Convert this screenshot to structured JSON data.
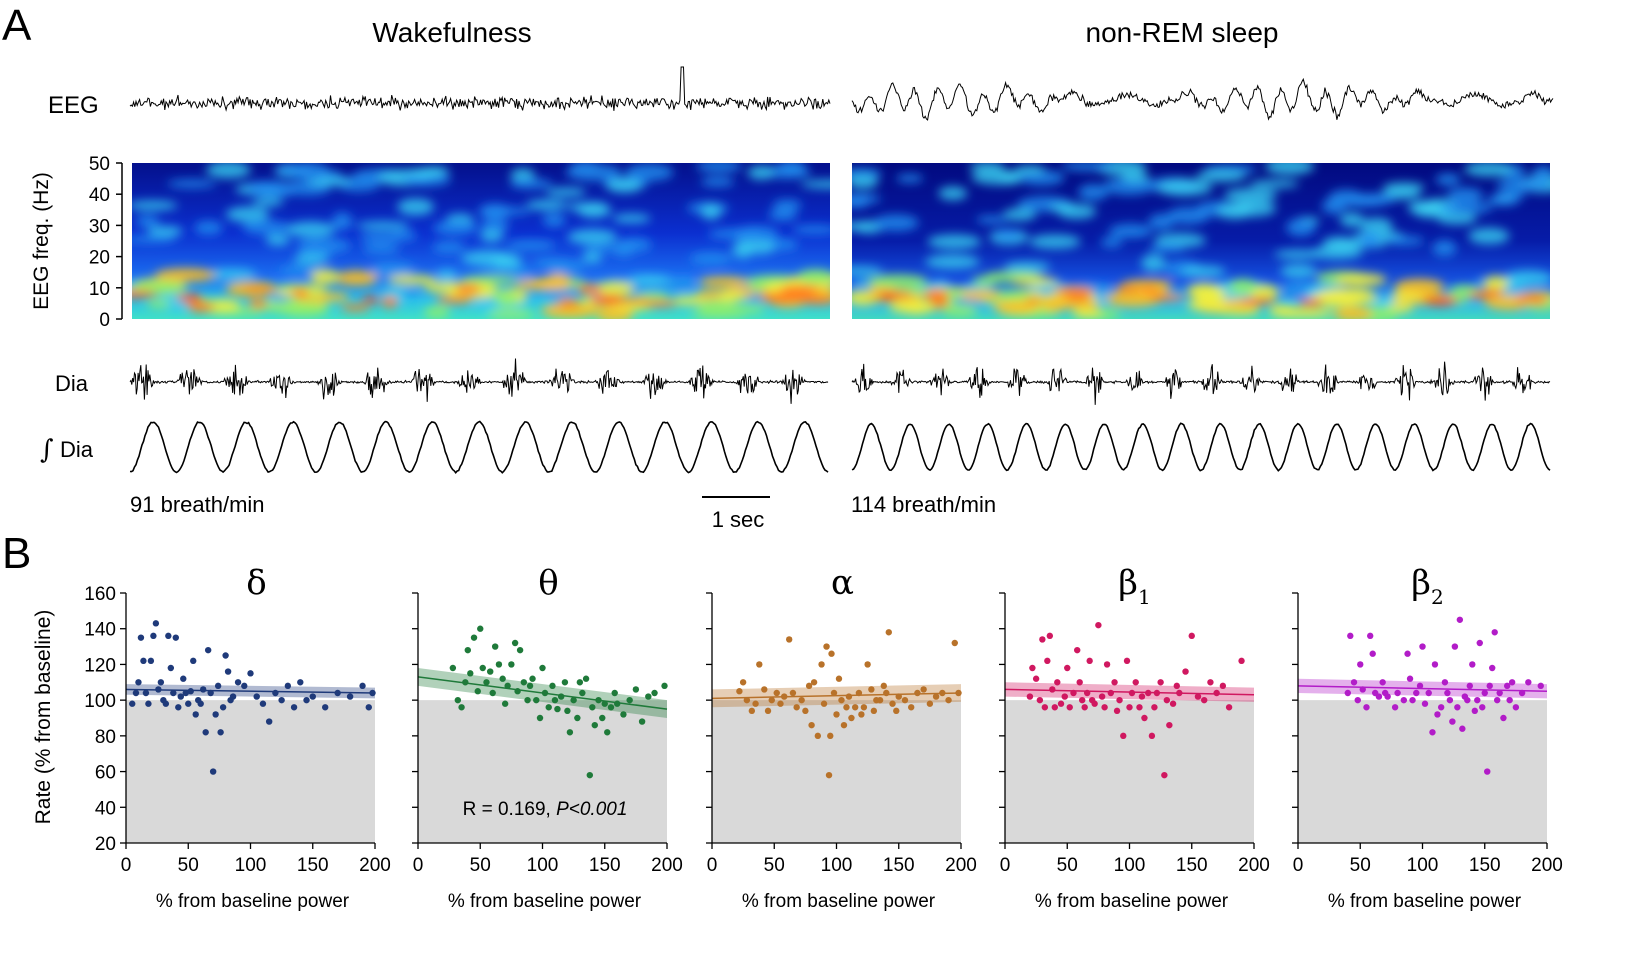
{
  "panel_a": {
    "label": "A",
    "left_title": "Wakefulness",
    "right_title": "non-REM sleep",
    "row_labels": {
      "eeg": "EEG",
      "dia": "Dia",
      "int_dia_symbol": "∫",
      "int_dia": "Dia"
    },
    "spectrogram_ylabel": "EEG freq. (Hz)",
    "spectrogram_ticks": [
      "0",
      "10",
      "20",
      "30",
      "40",
      "50"
    ],
    "left_rate": "91 breath/min",
    "right_rate": "114 breath/min",
    "scale_bar": "1 sec",
    "left_breaths": 15,
    "right_breaths": 18
  },
  "panel_b": {
    "label": "B",
    "ylabel": "Rate (% from baseline)",
    "xlabel": "% from baseline power",
    "annotation_r": "R = 0.169, ",
    "annotation_p": "P<0.001"
  },
  "chart_data": [
    {
      "type": "scatter",
      "title": "δ",
      "color": "#1f3a7a",
      "xlabel": "% from baseline power",
      "ylabel": "Rate (% from baseline)",
      "xlim": [
        0,
        200
      ],
      "ylim": [
        20,
        160
      ],
      "xticks": [
        "0",
        "50",
        "100",
        "150",
        "200"
      ],
      "yticks": [
        "20",
        "40",
        "60",
        "80",
        "100",
        "120",
        "140",
        "160"
      ],
      "fit": {
        "y0": 106,
        "y1": 104,
        "ci": 3
      },
      "points": [
        [
          5,
          98
        ],
        [
          8,
          104
        ],
        [
          10,
          110
        ],
        [
          12,
          135
        ],
        [
          14,
          122
        ],
        [
          16,
          104
        ],
        [
          18,
          98
        ],
        [
          20,
          122
        ],
        [
          22,
          136
        ],
        [
          24,
          143
        ],
        [
          26,
          106
        ],
        [
          28,
          110
        ],
        [
          30,
          100
        ],
        [
          32,
          98
        ],
        [
          34,
          136
        ],
        [
          36,
          118
        ],
        [
          38,
          104
        ],
        [
          40,
          135
        ],
        [
          42,
          96
        ],
        [
          44,
          102
        ],
        [
          46,
          112
        ],
        [
          48,
          104
        ],
        [
          50,
          98
        ],
        [
          52,
          105
        ],
        [
          54,
          122
        ],
        [
          56,
          92
        ],
        [
          58,
          100
        ],
        [
          60,
          98
        ],
        [
          62,
          106
        ],
        [
          64,
          82
        ],
        [
          66,
          128
        ],
        [
          68,
          104
        ],
        [
          70,
          60
        ],
        [
          72,
          92
        ],
        [
          74,
          108
        ],
        [
          76,
          82
        ],
        [
          78,
          96
        ],
        [
          80,
          125
        ],
        [
          82,
          116
        ],
        [
          84,
          100
        ],
        [
          86,
          102
        ],
        [
          90,
          110
        ],
        [
          95,
          108
        ],
        [
          100,
          115
        ],
        [
          105,
          102
        ],
        [
          110,
          98
        ],
        [
          115,
          88
        ],
        [
          120,
          104
        ],
        [
          125,
          100
        ],
        [
          130,
          108
        ],
        [
          135,
          96
        ],
        [
          140,
          110
        ],
        [
          145,
          100
        ],
        [
          150,
          102
        ],
        [
          160,
          96
        ],
        [
          170,
          104
        ],
        [
          180,
          102
        ],
        [
          190,
          108
        ],
        [
          195,
          96
        ],
        [
          198,
          104
        ]
      ]
    },
    {
      "type": "scatter",
      "title": "θ",
      "color": "#1f7a3a",
      "xlabel": "% from baseline power",
      "ylabel": "",
      "xlim": [
        0,
        200
      ],
      "ylim": [
        20,
        160
      ],
      "xticks": [
        "0",
        "50",
        "100",
        "150",
        "200"
      ],
      "yticks": [],
      "fit": {
        "y0": 113,
        "y1": 95,
        "ci": 5
      },
      "points": [
        [
          28,
          118
        ],
        [
          32,
          100
        ],
        [
          35,
          96
        ],
        [
          38,
          110
        ],
        [
          40,
          128
        ],
        [
          42,
          115
        ],
        [
          45,
          135
        ],
        [
          48,
          105
        ],
        [
          50,
          140
        ],
        [
          52,
          118
        ],
        [
          55,
          110
        ],
        [
          58,
          116
        ],
        [
          60,
          104
        ],
        [
          62,
          130
        ],
        [
          65,
          120
        ],
        [
          68,
          112
        ],
        [
          70,
          98
        ],
        [
          72,
          108
        ],
        [
          75,
          120
        ],
        [
          78,
          132
        ],
        [
          80,
          105
        ],
        [
          82,
          128
        ],
        [
          85,
          110
        ],
        [
          88,
          100
        ],
        [
          90,
          108
        ],
        [
          92,
          112
        ],
        [
          95,
          100
        ],
        [
          98,
          90
        ],
        [
          100,
          118
        ],
        [
          102,
          104
        ],
        [
          105,
          96
        ],
        [
          108,
          108
        ],
        [
          110,
          100
        ],
        [
          112,
          95
        ],
        [
          115,
          102
        ],
        [
          118,
          110
        ],
        [
          120,
          94
        ],
        [
          122,
          82
        ],
        [
          125,
          100
        ],
        [
          128,
          90
        ],
        [
          130,
          110
        ],
        [
          132,
          104
        ],
        [
          135,
          112
        ],
        [
          138,
          58
        ],
        [
          140,
          96
        ],
        [
          142,
          86
        ],
        [
          145,
          100
        ],
        [
          148,
          90
        ],
        [
          150,
          98
        ],
        [
          152,
          82
        ],
        [
          155,
          96
        ],
        [
          158,
          104
        ],
        [
          160,
          98
        ],
        [
          165,
          92
        ],
        [
          170,
          100
        ],
        [
          175,
          106
        ],
        [
          180,
          88
        ],
        [
          185,
          102
        ],
        [
          190,
          104
        ],
        [
          198,
          108
        ]
      ]
    },
    {
      "type": "scatter",
      "title": "α",
      "color": "#b8722a",
      "xlabel": "% from baseline power",
      "ylabel": "",
      "xlim": [
        0,
        200
      ],
      "ylim": [
        20,
        160
      ],
      "xticks": [
        "0",
        "50",
        "100",
        "150",
        "200"
      ],
      "yticks": [],
      "fit": {
        "y0": 101,
        "y1": 104,
        "ci": 5
      },
      "points": [
        [
          22,
          105
        ],
        [
          25,
          110
        ],
        [
          28,
          100
        ],
        [
          32,
          94
        ],
        [
          35,
          98
        ],
        [
          38,
          120
        ],
        [
          42,
          106
        ],
        [
          45,
          94
        ],
        [
          48,
          100
        ],
        [
          52,
          104
        ],
        [
          55,
          98
        ],
        [
          58,
          102
        ],
        [
          62,
          134
        ],
        [
          65,
          104
        ],
        [
          68,
          96
        ],
        [
          72,
          100
        ],
        [
          75,
          94
        ],
        [
          78,
          108
        ],
        [
          80,
          86
        ],
        [
          82,
          110
        ],
        [
          85,
          80
        ],
        [
          88,
          120
        ],
        [
          90,
          98
        ],
        [
          92,
          130
        ],
        [
          94,
          58
        ],
        [
          95,
          80
        ],
        [
          96,
          126
        ],
        [
          98,
          104
        ],
        [
          100,
          92
        ],
        [
          102,
          112
        ],
        [
          104,
          100
        ],
        [
          106,
          86
        ],
        [
          108,
          96
        ],
        [
          110,
          102
        ],
        [
          112,
          90
        ],
        [
          115,
          96
        ],
        [
          118,
          104
        ],
        [
          120,
          92
        ],
        [
          122,
          96
        ],
        [
          125,
          120
        ],
        [
          128,
          106
        ],
        [
          130,
          94
        ],
        [
          132,
          100
        ],
        [
          135,
          100
        ],
        [
          138,
          108
        ],
        [
          140,
          104
        ],
        [
          142,
          138
        ],
        [
          145,
          98
        ],
        [
          148,
          94
        ],
        [
          150,
          102
        ],
        [
          155,
          100
        ],
        [
          160,
          96
        ],
        [
          165,
          104
        ],
        [
          170,
          106
        ],
        [
          175,
          98
        ],
        [
          180,
          102
        ],
        [
          185,
          104
        ],
        [
          190,
          100
        ],
        [
          195,
          132
        ],
        [
          198,
          104
        ]
      ]
    },
    {
      "type": "scatter",
      "title": "β",
      "title_sub": "1",
      "color": "#d01860",
      "xlabel": "% from baseline power",
      "ylabel": "",
      "xlim": [
        0,
        200
      ],
      "ylim": [
        20,
        160
      ],
      "xticks": [
        "0",
        "50",
        "100",
        "150",
        "200"
      ],
      "yticks": [],
      "fit": {
        "y0": 106,
        "y1": 103,
        "ci": 4
      },
      "points": [
        [
          20,
          102
        ],
        [
          22,
          118
        ],
        [
          25,
          112
        ],
        [
          28,
          100
        ],
        [
          30,
          134
        ],
        [
          32,
          96
        ],
        [
          34,
          122
        ],
        [
          36,
          136
        ],
        [
          38,
          106
        ],
        [
          40,
          96
        ],
        [
          42,
          110
        ],
        [
          45,
          98
        ],
        [
          48,
          102
        ],
        [
          50,
          118
        ],
        [
          52,
          96
        ],
        [
          55,
          104
        ],
        [
          58,
          128
        ],
        [
          60,
          110
        ],
        [
          62,
          100
        ],
        [
          64,
          96
        ],
        [
          66,
          104
        ],
        [
          68,
          122
        ],
        [
          70,
          100
        ],
        [
          72,
          98
        ],
        [
          75,
          142
        ],
        [
          78,
          102
        ],
        [
          80,
          96
        ],
        [
          82,
          120
        ],
        [
          85,
          104
        ],
        [
          88,
          110
        ],
        [
          90,
          94
        ],
        [
          92,
          100
        ],
        [
          95,
          80
        ],
        [
          98,
          122
        ],
        [
          100,
          96
        ],
        [
          102,
          104
        ],
        [
          105,
          110
        ],
        [
          108,
          96
        ],
        [
          110,
          102
        ],
        [
          112,
          90
        ],
        [
          115,
          104
        ],
        [
          118,
          80
        ],
        [
          120,
          96
        ],
        [
          122,
          104
        ],
        [
          125,
          110
        ],
        [
          128,
          58
        ],
        [
          130,
          100
        ],
        [
          132,
          86
        ],
        [
          135,
          98
        ],
        [
          138,
          108
        ],
        [
          140,
          104
        ],
        [
          145,
          116
        ],
        [
          150,
          136
        ],
        [
          155,
          102
        ],
        [
          160,
          100
        ],
        [
          165,
          110
        ],
        [
          170,
          104
        ],
        [
          175,
          108
        ],
        [
          180,
          96
        ],
        [
          190,
          122
        ]
      ]
    },
    {
      "type": "scatter",
      "title": "β",
      "title_sub": "2",
      "color": "#b21cc8",
      "xlabel": "% from baseline power",
      "ylabel": "",
      "xlim": [
        0,
        200
      ],
      "ylim": [
        20,
        160
      ],
      "xticks": [
        "0",
        "50",
        "100",
        "150",
        "200"
      ],
      "yticks": [],
      "fit": {
        "y0": 108,
        "y1": 105,
        "ci": 4
      },
      "points": [
        [
          40,
          104
        ],
        [
          42,
          136
        ],
        [
          45,
          110
        ],
        [
          48,
          100
        ],
        [
          50,
          120
        ],
        [
          52,
          106
        ],
        [
          55,
          96
        ],
        [
          58,
          136
        ],
        [
          60,
          126
        ],
        [
          62,
          104
        ],
        [
          65,
          102
        ],
        [
          68,
          110
        ],
        [
          70,
          104
        ],
        [
          72,
          102
        ],
        [
          78,
          96
        ],
        [
          80,
          104
        ],
        [
          85,
          100
        ],
        [
          88,
          126
        ],
        [
          90,
          112
        ],
        [
          92,
          100
        ],
        [
          95,
          104
        ],
        [
          98,
          108
        ],
        [
          100,
          130
        ],
        [
          102,
          98
        ],
        [
          105,
          104
        ],
        [
          108,
          82
        ],
        [
          110,
          120
        ],
        [
          112,
          92
        ],
        [
          115,
          96
        ],
        [
          118,
          110
        ],
        [
          120,
          104
        ],
        [
          122,
          100
        ],
        [
          124,
          88
        ],
        [
          126,
          130
        ],
        [
          128,
          96
        ],
        [
          130,
          145
        ],
        [
          132,
          84
        ],
        [
          134,
          102
        ],
        [
          136,
          100
        ],
        [
          138,
          108
        ],
        [
          140,
          120
        ],
        [
          142,
          94
        ],
        [
          144,
          100
        ],
        [
          146,
          132
        ],
        [
          148,
          96
        ],
        [
          150,
          104
        ],
        [
          152,
          60
        ],
        [
          154,
          108
        ],
        [
          156,
          118
        ],
        [
          158,
          138
        ],
        [
          160,
          100
        ],
        [
          162,
          104
        ],
        [
          165,
          90
        ],
        [
          168,
          108
        ],
        [
          170,
          100
        ],
        [
          172,
          110
        ],
        [
          175,
          96
        ],
        [
          180,
          104
        ],
        [
          185,
          110
        ],
        [
          195,
          108
        ]
      ]
    }
  ]
}
